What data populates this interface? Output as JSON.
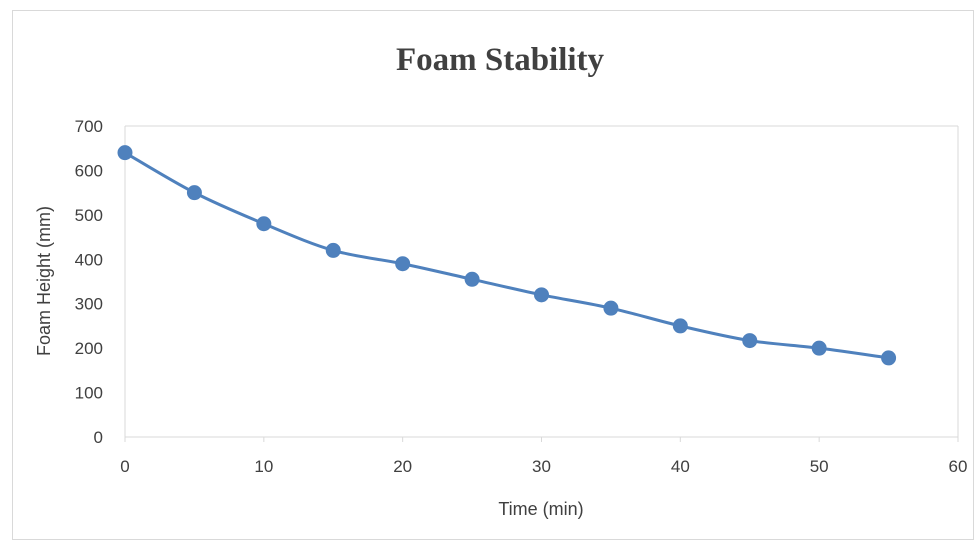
{
  "chart_data": {
    "type": "line",
    "title": "Foam Stability",
    "xlabel": "Time (min)",
    "ylabel": "Foam Height (mm)",
    "xlim": [
      0,
      60
    ],
    "ylim": [
      0,
      700
    ],
    "xticks": [
      0,
      10,
      20,
      30,
      40,
      50,
      60
    ],
    "yticks": [
      0,
      100,
      200,
      300,
      400,
      500,
      600,
      700
    ],
    "grid": false,
    "legend": "none",
    "series": [
      {
        "x": [
          0,
          5,
          10,
          15,
          20,
          25,
          30,
          35,
          40,
          45,
          50,
          55
        ],
        "y": [
          640,
          550,
          480,
          420,
          390,
          355,
          320,
          290,
          250,
          217,
          200,
          178
        ],
        "color": "#4f81bd"
      }
    ]
  },
  "colors": {
    "series": "#4f81bd",
    "text": "#404040",
    "axis": "#d9d9d9"
  }
}
